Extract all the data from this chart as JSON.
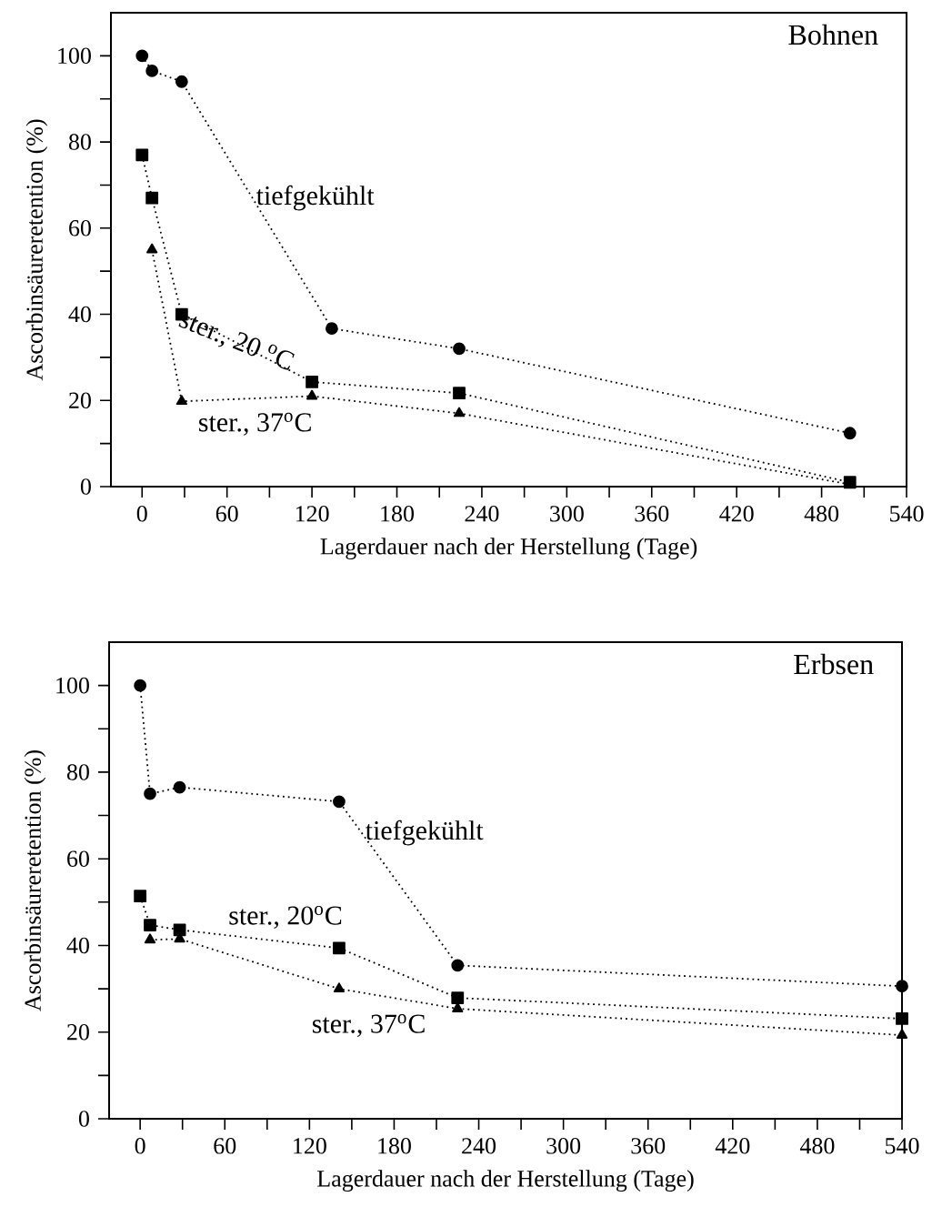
{
  "chart_data": [
    {
      "type": "line",
      "title": "Bohnen",
      "xlabel": "Lagerdauer nach der Herstellung (Tage)",
      "ylabel": "Ascorbinsäureretention (%)",
      "xlim": [
        -22,
        540
      ],
      "ylim": [
        0,
        110
      ],
      "xticks": [
        0,
        {
          "value": 30,
          "label": null
        },
        60,
        {
          "value": 90,
          "label": null
        },
        120,
        {
          "value": 150,
          "label": null
        },
        180,
        {
          "value": 210,
          "label": null
        },
        240,
        {
          "value": 270,
          "label": null
        },
        300,
        {
          "value": 330,
          "label": null
        },
        360,
        {
          "value": 390,
          "label": null
        },
        420,
        {
          "value": 450,
          "label": null
        },
        480,
        {
          "value": 510,
          "label": null
        },
        540
      ],
      "yticks": [
        0,
        {
          "value": 10,
          "label": null
        },
        20,
        {
          "value": 30,
          "label": null
        },
        40,
        {
          "value": 50,
          "label": null
        },
        60,
        {
          "value": 70,
          "label": null
        },
        80,
        {
          "value": 90,
          "label": null
        },
        100
      ],
      "line_style": "dotted",
      "legend": false,
      "grid": false,
      "series": [
        {
          "name": "tiefgekühlt",
          "color": "#000000",
          "marker": "circle",
          "x": [
            0,
            7,
            28,
            134,
            224,
            500
          ],
          "values": [
            100,
            96.5,
            94,
            36.7,
            32,
            12.4
          ]
        },
        {
          "name": "ster., 20 $^{o}$C",
          "color": "#000000",
          "marker": "square",
          "x": [
            0,
            7,
            28,
            120,
            224,
            500
          ],
          "values": [
            77,
            67,
            40,
            24.3,
            21.7,
            1
          ]
        },
        {
          "name": "ster., 37$^{o}$C",
          "color": "#000000",
          "marker": "triangle",
          "x": [
            7,
            28,
            120,
            224,
            500
          ],
          "values": [
            55,
            19.8,
            21,
            17,
            0.5
          ]
        }
      ]
    },
    {
      "type": "line",
      "title": "Erbsen",
      "xlabel": "Lagerdauer nach der Herstellung (Tage)",
      "ylabel": "Ascorbinsäureretention (%)",
      "xlim": [
        -22,
        540
      ],
      "ylim": [
        0,
        110
      ],
      "xticks": [
        0,
        {
          "value": 30,
          "label": null
        },
        60,
        {
          "value": 90,
          "label": null
        },
        120,
        {
          "value": 150,
          "label": null
        },
        180,
        {
          "value": 210,
          "label": null
        },
        240,
        {
          "value": 270,
          "label": null
        },
        300,
        {
          "value": 330,
          "label": null
        },
        360,
        {
          "value": 390,
          "label": null
        },
        420,
        {
          "value": 450,
          "label": null
        },
        480,
        {
          "value": 510,
          "label": null
        },
        540
      ],
      "yticks": [
        0,
        {
          "value": 10,
          "label": null
        },
        20,
        {
          "value": 30,
          "label": null
        },
        40,
        {
          "value": 50,
          "label": null
        },
        60,
        {
          "value": 70,
          "label": null
        },
        80,
        {
          "value": 90,
          "label": null
        },
        100
      ],
      "line_style": "dotted",
      "legend": false,
      "grid": false,
      "series": [
        {
          "name": "tiefgekühlt",
          "color": "#000000",
          "marker": "circle",
          "x": [
            0,
            7,
            28,
            141,
            225,
            540
          ],
          "values": [
            100,
            75,
            76.5,
            73.2,
            35.4,
            30.6
          ]
        },
        {
          "name": "ster., 20$^{o}$C",
          "color": "#000000",
          "marker": "square",
          "x": [
            0,
            7,
            28,
            141,
            225,
            540
          ],
          "values": [
            51.4,
            44.7,
            43.6,
            39.4,
            27.9,
            23.1
          ]
        },
        {
          "name": "ster., 37$^{o}$C",
          "color": "#000000",
          "marker": "triangle",
          "x": [
            7,
            28,
            141,
            225,
            540
          ],
          "values": [
            41.3,
            41.5,
            30,
            25.4,
            19.3
          ]
        }
      ]
    }
  ]
}
